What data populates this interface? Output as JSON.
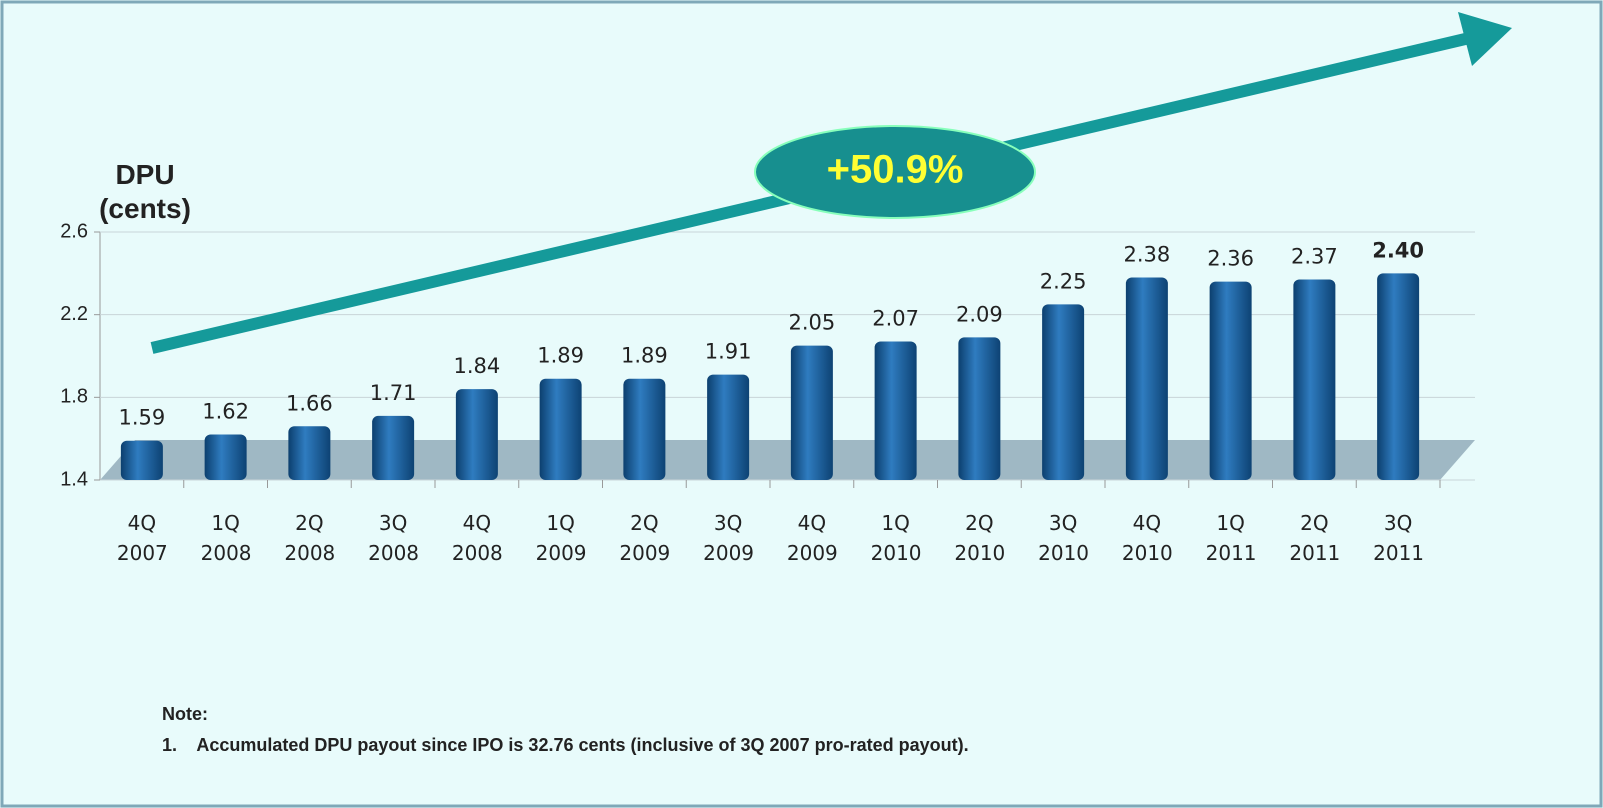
{
  "chart_data": {
    "type": "bar",
    "y_label": "DPU (cents)",
    "categories": [
      "4Q 2007",
      "1Q 2008",
      "2Q 2008",
      "3Q 2008",
      "4Q 2008",
      "1Q 2009",
      "2Q 2009",
      "3Q 2009",
      "4Q 2009",
      "1Q 2010",
      "2Q 2010",
      "3Q 2010",
      "4Q 2010",
      "1Q 2011",
      "2Q 2011",
      "3Q 2011"
    ],
    "values": [
      1.59,
      1.62,
      1.66,
      1.71,
      1.84,
      1.89,
      1.89,
      1.91,
      2.05,
      2.07,
      2.09,
      2.25,
      2.38,
      2.36,
      2.37,
      2.4
    ],
    "value_labels": [
      "1.59",
      "1.62",
      "1.66",
      "1.71",
      "1.84",
      "1.89",
      "1.89",
      "1.91",
      "2.05",
      "2.07",
      "2.09",
      "2.25",
      "2.38",
      "2.36",
      "2.37",
      "2.40"
    ],
    "color": "#1d5d97",
    "ylim": [
      1.4,
      2.6
    ],
    "yticks": [
      1.4,
      1.8,
      2.2,
      2.6
    ],
    "grid": true,
    "annotation": "+50.9%",
    "notes": [
      "Note:",
      "1.    Accumulated DPU payout since IPO is 32.76 cents (inclusive of 3Q 2007 pro-rated payout)."
    ]
  }
}
